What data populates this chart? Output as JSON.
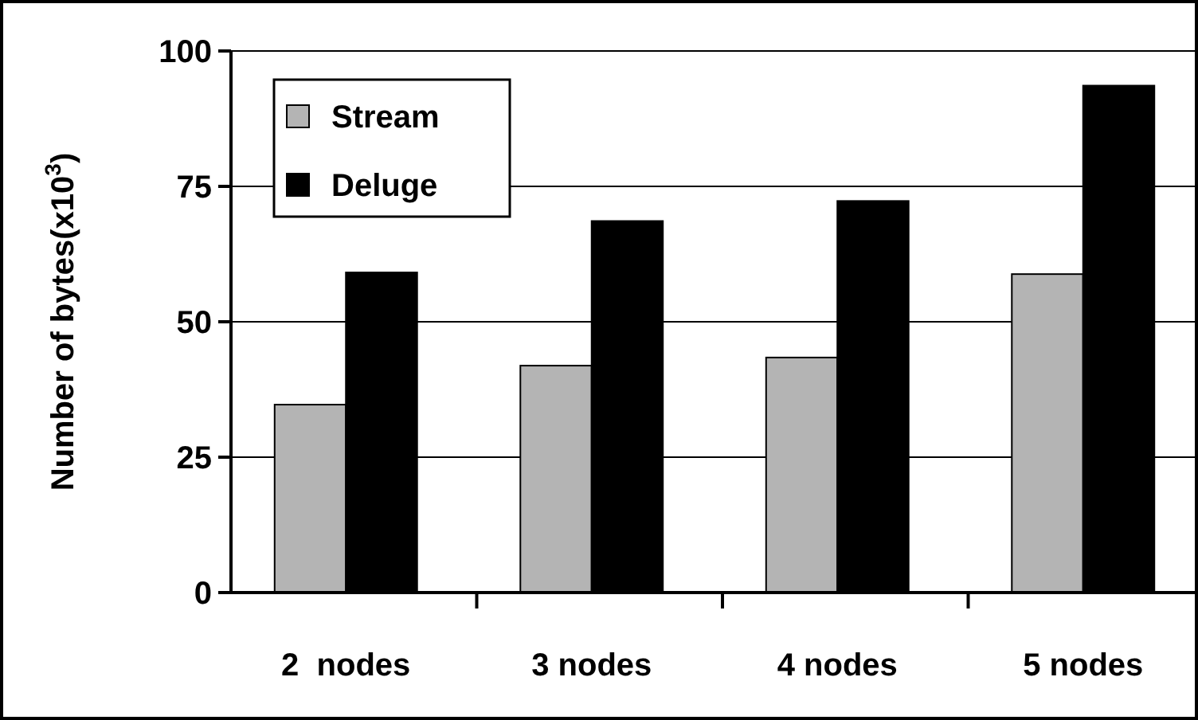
{
  "chart_data": {
    "type": "bar",
    "ylabel": "Number of bytes(x10$^{3}$)",
    "categories": [
      "2  nodes",
      "3 nodes",
      "4 nodes",
      "5 nodes"
    ],
    "series": [
      {
        "name": "Stream",
        "color": "#b4b4b4",
        "values": [
          34.7,
          41.9,
          43.4,
          58.8
        ]
      },
      {
        "name": "Deluge",
        "color": "#000000",
        "values": [
          59.1,
          68.6,
          72.3,
          93.6
        ]
      }
    ],
    "ylim": [
      0,
      100
    ],
    "yticks": [
      0,
      25,
      50,
      75,
      100
    ],
    "grid": "y",
    "legend": "top left"
  }
}
